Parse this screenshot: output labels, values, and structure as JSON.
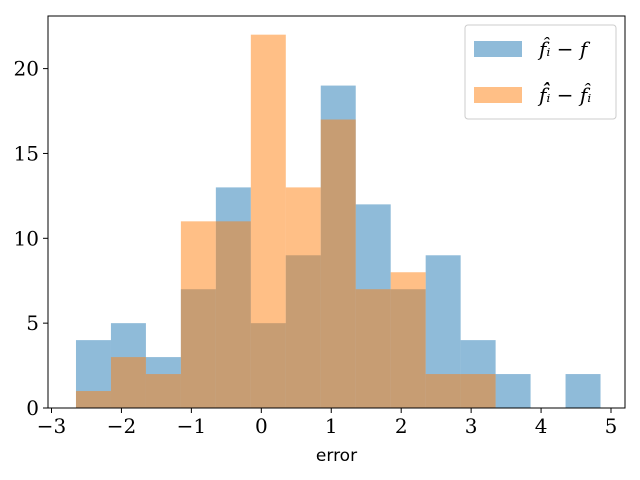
{
  "chart_data": {
    "type": "bar",
    "title": "",
    "xlabel": "error",
    "ylabel": "",
    "xlim": [
      -3.05,
      5.2
    ],
    "ylim": [
      0,
      23.1
    ],
    "xticks": [
      -3,
      -2,
      -1,
      0,
      1,
      2,
      3,
      4,
      5
    ],
    "xtick_labels": [
      "−3",
      "−2",
      "−1",
      "0",
      "1",
      "2",
      "3",
      "4",
      "5"
    ],
    "yticks": [
      0,
      5,
      10,
      15,
      20
    ],
    "ytick_labels": [
      "0",
      "5",
      "10",
      "15",
      "20"
    ],
    "grid": false,
    "legend_position": "top-right",
    "series": [
      {
        "name": "f̂ᵢ − f",
        "color": "#1f77b4",
        "alpha": 0.5,
        "bin_edges": [
          -2.65,
          -2.15,
          -1.65,
          -1.15,
          -0.65,
          -0.15,
          0.35,
          0.85,
          1.35,
          1.85,
          2.35,
          2.85,
          3.35,
          3.85,
          4.35,
          4.85
        ],
        "counts": [
          4,
          5,
          3,
          7,
          13,
          5,
          9,
          19,
          12,
          7,
          9,
          4,
          2,
          0,
          2
        ]
      },
      {
        "name": "f̂̂ᵢ − f̂ᵢ",
        "color": "#ff7f0e",
        "alpha": 0.5,
        "bin_edges": [
          -2.65,
          -2.15,
          -1.65,
          -1.15,
          -0.65,
          -0.15,
          0.35,
          0.85,
          1.35,
          1.85,
          2.35,
          2.85,
          3.35
        ],
        "counts": [
          1,
          3,
          2,
          11,
          11,
          22,
          13,
          17,
          7,
          8,
          2,
          2
        ]
      }
    ]
  }
}
